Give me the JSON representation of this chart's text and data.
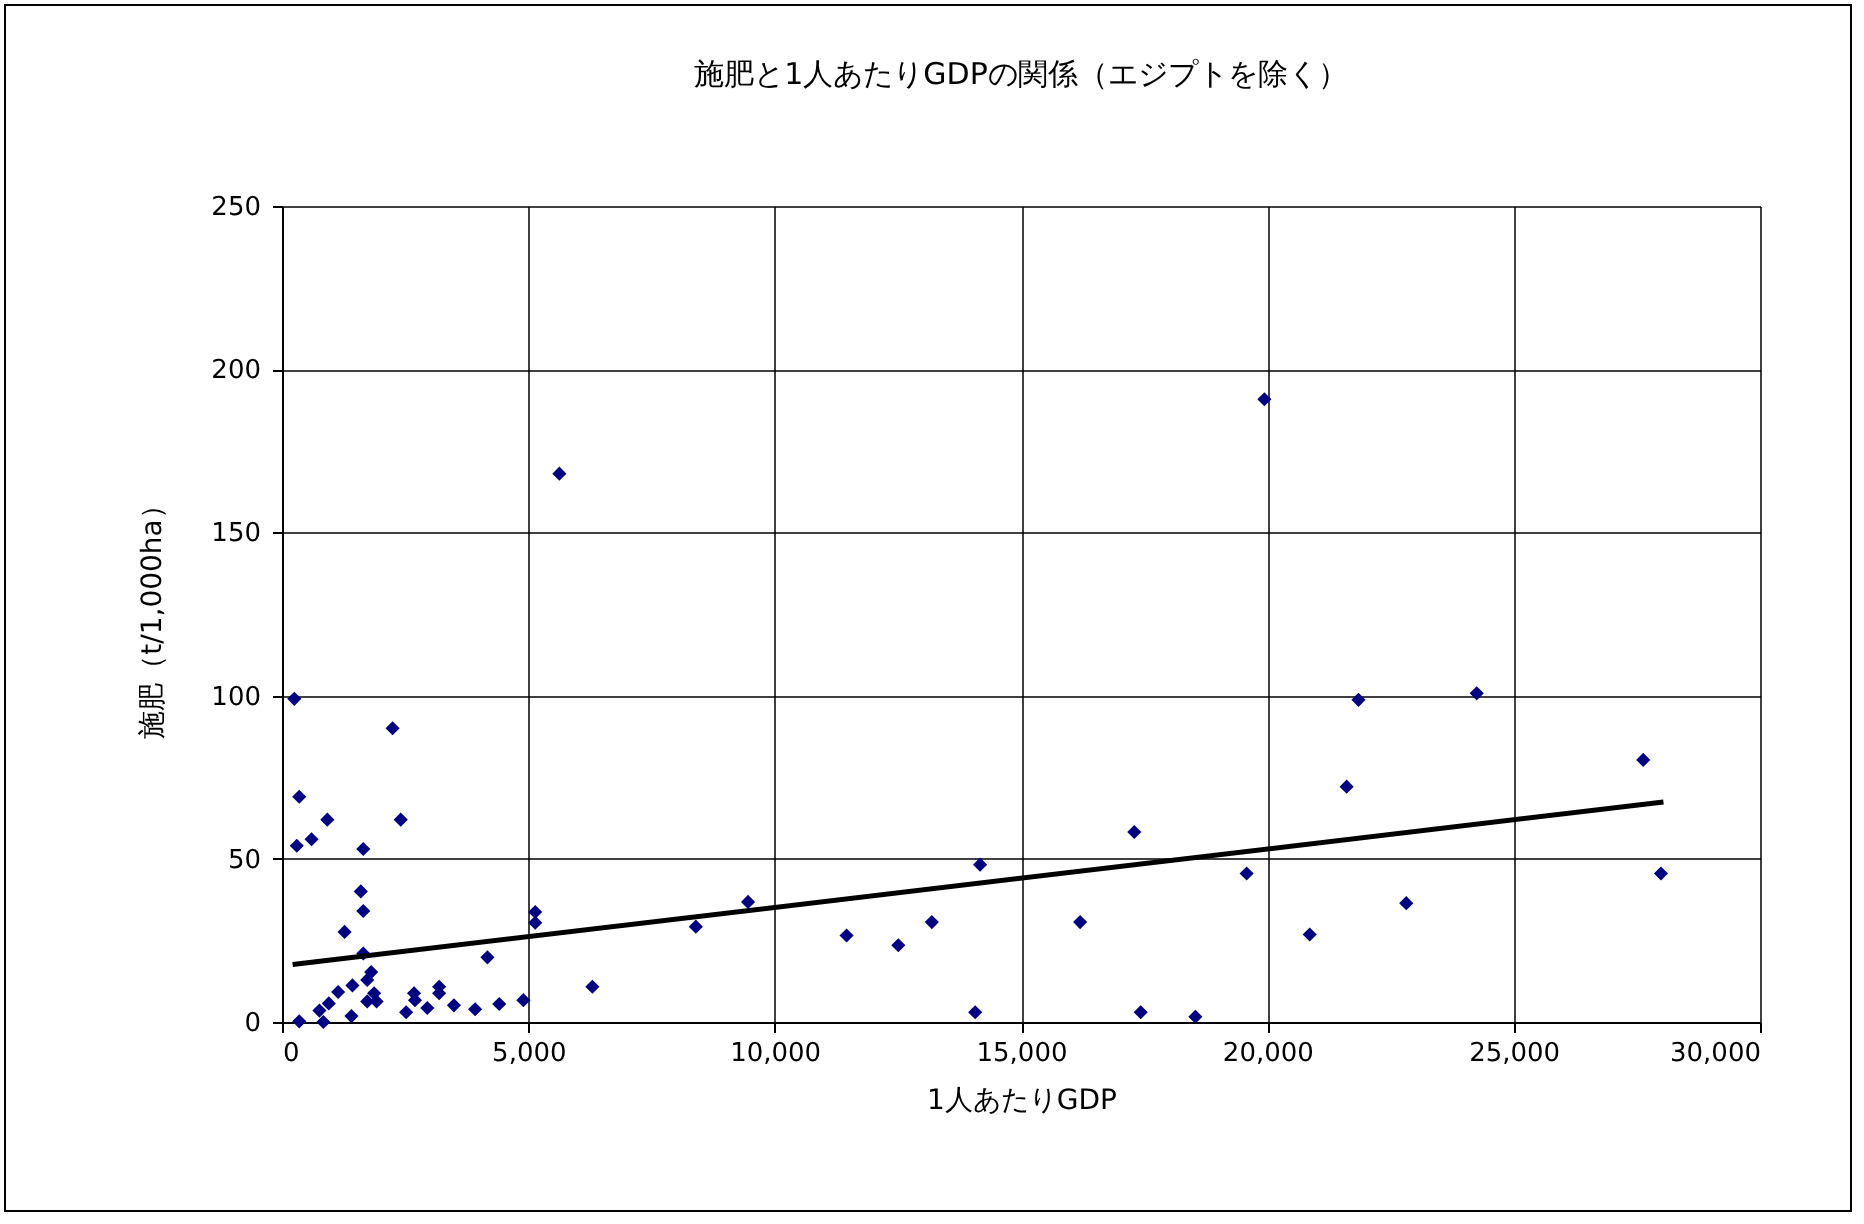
{
  "chart_data": {
    "type": "scatter",
    "title": "施肥と1人あたりGDPの関係（エジプトを除く）",
    "xlabel": "1人あたりGDP",
    "ylabel": "施肥（t/1,000ha）",
    "xlim": [
      0,
      30000
    ],
    "xticks": [
      {
        "value": 0,
        "label": "0"
      },
      {
        "value": 5000,
        "label": "5,000"
      },
      {
        "value": 10000,
        "label": "10,000"
      },
      {
        "value": 15000,
        "label": "15,000"
      },
      {
        "value": 20000,
        "label": "20,000"
      },
      {
        "value": 25000,
        "label": "25,000"
      },
      {
        "value": 30000,
        "label": "30,000"
      }
    ],
    "ylim": [
      0,
      250
    ],
    "yticks": [
      0,
      50,
      100,
      150,
      200,
      250
    ],
    "grid": true,
    "series": [
      {
        "marker": "diamond",
        "color": "#000080",
        "x": [
          250,
          2245,
          350,
          920,
          2410,
          300,
          600,
          1650,
          1600,
          1650,
          1270,
          1650,
          5140,
          5140,
          4170,
          6300,
          1810,
          1730,
          1430,
          1140,
          1870,
          1730,
          1920,
          950,
          2680,
          3190,
          3190,
          2700,
          2950,
          2520,
          3490,
          3920,
          4410,
          4900,
          1410,
          350,
          840,
          760,
          5630,
          8400,
          9460,
          11460,
          12510,
          13190,
          14170,
          14070,
          16200,
          17300,
          17430,
          18540,
          19940,
          19580,
          20860,
          21610,
          21850,
          22820,
          24250,
          27630,
          27990
        ],
        "values": [
          99,
          90,
          69,
          62,
          62,
          54,
          56,
          53,
          40,
          34,
          27.6,
          21,
          33.7,
          30.4,
          19.8,
          10.8,
          15.3,
          12.9,
          11.2,
          9.2,
          8.8,
          6.3,
          6.3,
          5.7,
          8.8,
          10.8,
          8.8,
          6.7,
          4.3,
          3,
          5.1,
          3.9,
          5.5,
          6.7,
          1.8,
          0.2,
          0,
          3.5,
          168,
          29.2,
          36.8,
          26.5,
          23.5,
          30.6,
          48.2,
          3,
          30.6,
          58.2,
          3,
          1.6,
          190.8,
          45.5,
          26.8,
          72.1,
          98.7,
          36.4,
          100.7,
          80.3,
          45.5
        ]
      },
      {
        "type": "line",
        "marker": "none",
        "color": "#000000",
        "x": [
          216,
          28040
        ],
        "values": [
          17.6,
          67.4
        ]
      }
    ]
  }
}
